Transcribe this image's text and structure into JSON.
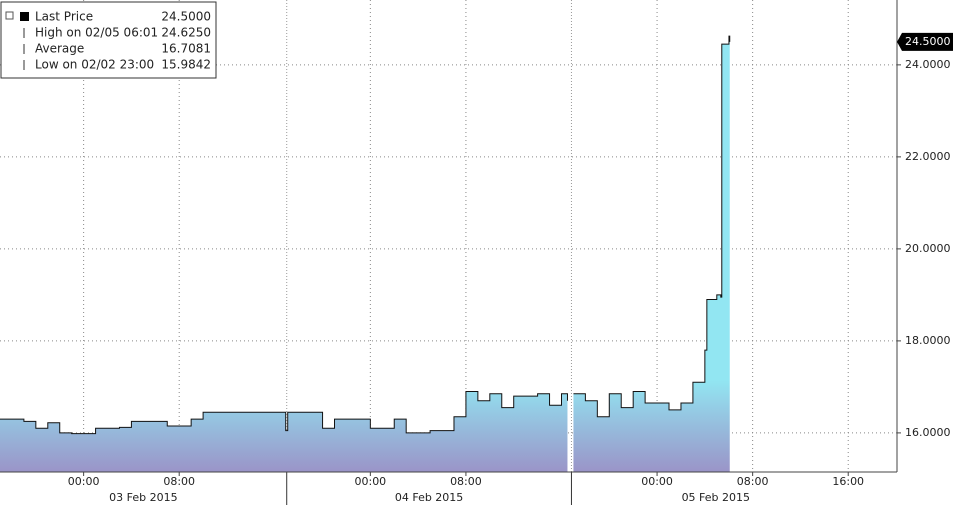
{
  "chart_data": {
    "type": "area",
    "x": [
      "2015-02-02 17:00",
      "2015-02-02 19:00",
      "2015-02-02 20:00",
      "2015-02-02 21:00",
      "2015-02-02 22:00",
      "2015-02-02 23:00",
      "2015-02-03 01:00",
      "2015-02-03 03:00",
      "2015-02-03 04:00",
      "2015-02-03 07:00",
      "2015-02-03 09:00",
      "2015-02-03 10:00",
      "2015-02-03 16:55",
      "2015-02-03 17:05",
      "2015-02-03 20:00",
      "2015-02-03 21:00",
      "2015-02-03 23:00",
      "2015-02-04 00:00",
      "2015-02-04 02:00",
      "2015-02-04 03:00",
      "2015-02-04 05:00",
      "2015-02-04 07:00",
      "2015-02-04 08:00",
      "2015-02-04 09:00",
      "2015-02-04 10:00",
      "2015-02-04 11:00",
      "2015-02-04 12:00",
      "2015-02-04 14:00",
      "2015-02-04 15:00",
      "2015-02-04 16:00",
      "2015-02-04 16:30",
      "2015-02-04 16:45",
      "2015-02-04 17:00",
      "2015-02-04 18:00",
      "2015-02-04 19:00",
      "2015-02-04 20:00",
      "2015-02-04 21:00",
      "2015-02-04 22:00",
      "2015-02-04 23:00",
      "2015-02-05 01:00",
      "2015-02-05 02:00",
      "2015-02-05 03:00",
      "2015-02-05 04:00",
      "2015-02-05 04:10",
      "2015-02-05 05:00",
      "2015-02-05 05:20",
      "2015-02-05 05:25",
      "2015-02-05 06:01",
      "2015-02-05 06:05"
    ],
    "series": [
      {
        "name": "Last Price",
        "color": "#111111",
        "values": [
          16.3,
          16.25,
          16.1,
          16.22,
          16.0,
          15.9842,
          16.1,
          16.12,
          16.25,
          16.15,
          16.3,
          16.45,
          16.05,
          16.45,
          16.1,
          16.3,
          16.3,
          16.1,
          16.3,
          16.0,
          16.05,
          16.35,
          16.9,
          16.7,
          16.85,
          16.55,
          16.8,
          16.85,
          16.6,
          16.85,
          16.7,
          null,
          16.85,
          16.7,
          16.35,
          16.85,
          16.55,
          16.9,
          16.65,
          16.5,
          16.65,
          17.1,
          17.8,
          18.9,
          19.0,
          18.95,
          24.45,
          24.625,
          24.5
        ]
      }
    ],
    "xlim": [
      "2015-02-02 17:00",
      "2015-02-05 20:05"
    ],
    "xticks": [
      {
        "value": "2015-02-03 00:00",
        "label": "00:00"
      },
      {
        "value": "2015-02-03 08:00",
        "label": "08:00"
      },
      {
        "value": "2015-02-04 00:00",
        "label": "00:00"
      },
      {
        "value": "2015-02-04 08:00",
        "label": "08:00"
      },
      {
        "value": "2015-02-05 00:00",
        "label": "00:00"
      },
      {
        "value": "2015-02-05 08:00",
        "label": "08:00"
      },
      {
        "value": "2015-02-05 16:00",
        "label": "16:00"
      }
    ],
    "sessions": [
      {
        "start": "2015-02-02 17:00",
        "end": "2015-02-03 17:00",
        "label": "03 Feb 2015"
      },
      {
        "start": "2015-02-03 17:00",
        "end": "2015-02-04 16:50",
        "label": "04 Feb 2015"
      },
      {
        "start": "2015-02-04 16:50",
        "end": "2015-02-05 17:00",
        "label": "05 Feb 2015"
      }
    ],
    "ylim": [
      15.15,
      25.41
    ],
    "yticks": [
      {
        "value": 16,
        "label": "16.0000"
      },
      {
        "value": 18,
        "label": "18.0000"
      },
      {
        "value": 20,
        "label": "20.0000"
      },
      {
        "value": 22,
        "label": "22.0000"
      },
      {
        "value": 24,
        "label": "24.0000"
      }
    ],
    "last_price_tag": "24.5000",
    "grid": true,
    "legend": [
      {
        "label": "Last Price",
        "value": "24.5000"
      },
      {
        "label": "High on 02/05 06:01",
        "value": "24.6250"
      },
      {
        "label": "Average",
        "value": "16.7081"
      },
      {
        "label": "Low on 02/02 23:00",
        "value": "15.9842"
      }
    ]
  }
}
